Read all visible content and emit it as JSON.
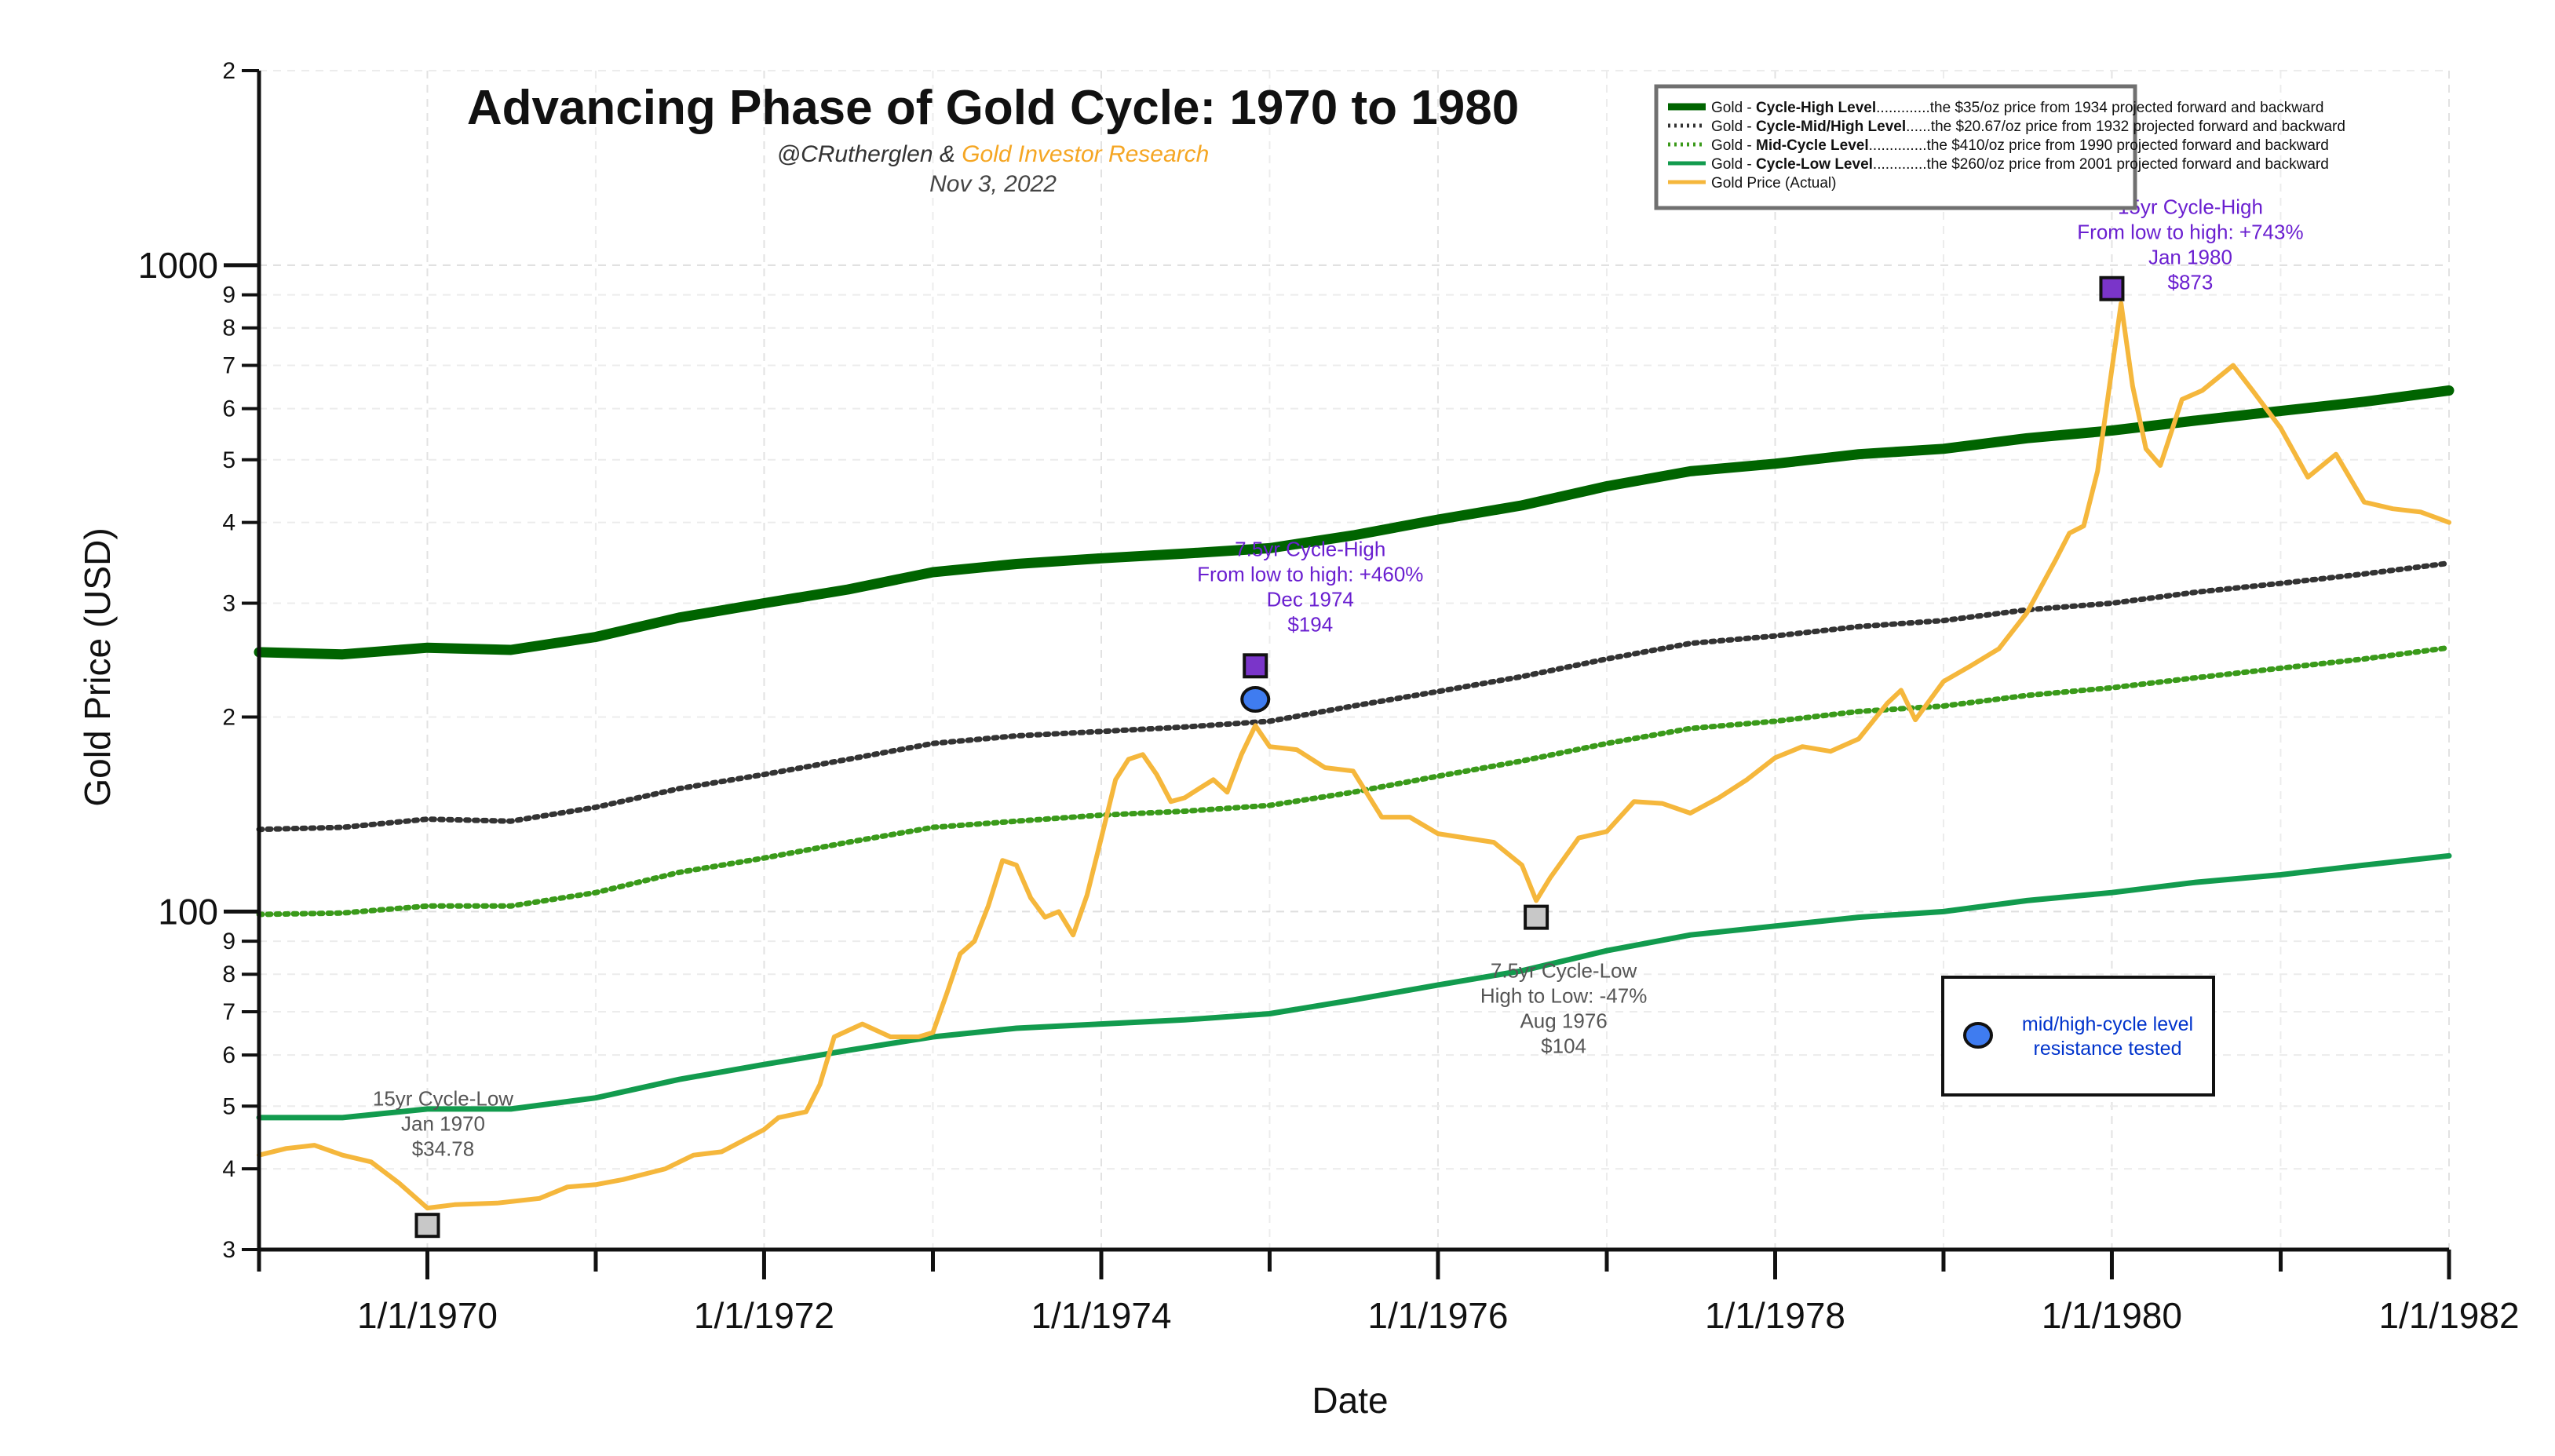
{
  "chart_data": {
    "type": "line",
    "title": "Advancing Phase of Gold Cycle: 1970 to 1980",
    "subtitle_author": "@CRutherglen & ",
    "subtitle_org": "Gold Investor Research",
    "date_text": "Nov 3, 2022",
    "xlabel": "Date",
    "ylabel": "Gold Price (USD)",
    "x_range": [
      "1969-01-01",
      "1982-01-01"
    ],
    "y_range": [
      30,
      2000
    ],
    "y_scale": "log",
    "grid": true,
    "x_ticks": [
      "1/1/1970",
      "1/1/1972",
      "1/1/1974",
      "1/1/1976",
      "1/1/1978",
      "1/1/1980",
      "1/1/1982"
    ],
    "y_major_ticks": [
      {
        "value": 100,
        "label": "100"
      },
      {
        "value": 1000,
        "label": "1000"
      }
    ],
    "y_minor_ticks": [
      {
        "value": 30,
        "label": "3"
      },
      {
        "value": 40,
        "label": "4"
      },
      {
        "value": 50,
        "label": "5"
      },
      {
        "value": 60,
        "label": "6"
      },
      {
        "value": 70,
        "label": "7"
      },
      {
        "value": 80,
        "label": "8"
      },
      {
        "value": 90,
        "label": "9"
      },
      {
        "value": 200,
        "label": "2"
      },
      {
        "value": 300,
        "label": "3"
      },
      {
        "value": 400,
        "label": "4"
      },
      {
        "value": 500,
        "label": "5"
      },
      {
        "value": 600,
        "label": "6"
      },
      {
        "value": 700,
        "label": "7"
      },
      {
        "value": 800,
        "label": "8"
      },
      {
        "value": 900,
        "label": "9"
      },
      {
        "value": 2000,
        "label": "2"
      }
    ],
    "legend": {
      "placement": "top-right",
      "items": [
        {
          "key": "high",
          "prefix": "Gold - ",
          "bold": "Cycle-High Level",
          "desc": ".............the $35/oz price from 1934 projected forward and backward",
          "color": "#006400",
          "dash": "solid"
        },
        {
          "key": "midhigh",
          "prefix": "Gold - ",
          "bold": "Cycle-Mid/High Level",
          "desc": "......the $20.67/oz price from 1932 projected forward and backward",
          "color": "#333333",
          "dash": "dotted"
        },
        {
          "key": "mid",
          "prefix": "Gold - ",
          "bold": "Mid-Cycle Level",
          "desc": "..............the $410/oz price from 1990 projected forward and backward",
          "color": "#3a9a1a",
          "dash": "dotted"
        },
        {
          "key": "low",
          "prefix": "Gold - ",
          "bold": "Cycle-Low Level",
          "desc": ".............the $260/oz price from 2001 projected forward and backward",
          "color": "#129b4e",
          "dash": "solid"
        },
        {
          "key": "actual",
          "prefix": "",
          "bold": "",
          "desc": "Gold Price (Actual)",
          "color": "#f5b73c",
          "dash": "solid"
        }
      ]
    },
    "series": [
      {
        "key": "high",
        "name": "Gold - Cycle-High Level",
        "color": "#006400",
        "points": [
          [
            "1969-01-01",
            252
          ],
          [
            "1969-07-01",
            250
          ],
          [
            "1970-01-01",
            256
          ],
          [
            "1970-07-01",
            254
          ],
          [
            "1971-01-01",
            266
          ],
          [
            "1971-07-01",
            285
          ],
          [
            "1972-01-01",
            300
          ],
          [
            "1972-07-01",
            315
          ],
          [
            "1973-01-01",
            335
          ],
          [
            "1973-07-01",
            345
          ],
          [
            "1974-01-01",
            352
          ],
          [
            "1974-07-01",
            358
          ],
          [
            "1975-01-01",
            365
          ],
          [
            "1975-07-01",
            382
          ],
          [
            "1976-01-01",
            404
          ],
          [
            "1976-07-01",
            425
          ],
          [
            "1977-01-01",
            455
          ],
          [
            "1977-07-01",
            480
          ],
          [
            "1978-01-01",
            493
          ],
          [
            "1978-07-01",
            510
          ],
          [
            "1979-01-01",
            520
          ],
          [
            "1979-07-01",
            540
          ],
          [
            "1980-01-01",
            555
          ],
          [
            "1980-07-01",
            575
          ],
          [
            "1981-01-01",
            595
          ],
          [
            "1981-07-01",
            615
          ],
          [
            "1982-01-01",
            640
          ]
        ]
      },
      {
        "key": "midhigh",
        "name": "Gold - Cycle-Mid/High Level",
        "color": "#333333",
        "points": [
          [
            "1969-01-01",
            134
          ],
          [
            "1969-07-01",
            135
          ],
          [
            "1970-01-01",
            139
          ],
          [
            "1970-07-01",
            138
          ],
          [
            "1971-01-01",
            145
          ],
          [
            "1971-07-01",
            155
          ],
          [
            "1972-01-01",
            163
          ],
          [
            "1972-07-01",
            172
          ],
          [
            "1973-01-01",
            182
          ],
          [
            "1973-07-01",
            187
          ],
          [
            "1974-01-01",
            190
          ],
          [
            "1974-07-01",
            193
          ],
          [
            "1975-01-01",
            197
          ],
          [
            "1975-07-01",
            208
          ],
          [
            "1976-01-01",
            219
          ],
          [
            "1976-07-01",
            231
          ],
          [
            "1977-01-01",
            246
          ],
          [
            "1977-07-01",
            260
          ],
          [
            "1978-01-01",
            267
          ],
          [
            "1978-07-01",
            276
          ],
          [
            "1979-01-01",
            282
          ],
          [
            "1979-07-01",
            293
          ],
          [
            "1980-01-01",
            300
          ],
          [
            "1980-07-01",
            312
          ],
          [
            "1981-01-01",
            322
          ],
          [
            "1981-07-01",
            333
          ],
          [
            "1982-01-01",
            346
          ]
        ]
      },
      {
        "key": "mid",
        "name": "Gold - Mid-Cycle Level",
        "color": "#3a9a1a",
        "points": [
          [
            "1969-01-01",
            99
          ],
          [
            "1969-07-01",
            99.5
          ],
          [
            "1970-01-01",
            102
          ],
          [
            "1970-07-01",
            102
          ],
          [
            "1971-01-01",
            107
          ],
          [
            "1971-07-01",
            115
          ],
          [
            "1972-01-01",
            121
          ],
          [
            "1972-07-01",
            128
          ],
          [
            "1973-01-01",
            135
          ],
          [
            "1973-07-01",
            138
          ],
          [
            "1974-01-01",
            141
          ],
          [
            "1974-07-01",
            143
          ],
          [
            "1975-01-01",
            146
          ],
          [
            "1975-07-01",
            153
          ],
          [
            "1976-01-01",
            162
          ],
          [
            "1976-07-01",
            171
          ],
          [
            "1977-01-01",
            182
          ],
          [
            "1977-07-01",
            192
          ],
          [
            "1978-01-01",
            197
          ],
          [
            "1978-07-01",
            204
          ],
          [
            "1979-01-01",
            208
          ],
          [
            "1979-07-01",
            216
          ],
          [
            "1980-01-01",
            222
          ],
          [
            "1980-07-01",
            230
          ],
          [
            "1981-01-01",
            238
          ],
          [
            "1981-07-01",
            246
          ],
          [
            "1982-01-01",
            256
          ]
        ]
      },
      {
        "key": "low",
        "name": "Gold - Cycle-Low Level",
        "color": "#129b4e",
        "points": [
          [
            "1969-01-01",
            48
          ],
          [
            "1969-07-01",
            48
          ],
          [
            "1970-01-01",
            49.5
          ],
          [
            "1970-07-01",
            49.5
          ],
          [
            "1971-01-01",
            51.5
          ],
          [
            "1971-07-01",
            55
          ],
          [
            "1972-01-01",
            58
          ],
          [
            "1972-07-01",
            61
          ],
          [
            "1973-01-01",
            64
          ],
          [
            "1973-07-01",
            66
          ],
          [
            "1974-01-01",
            67
          ],
          [
            "1974-07-01",
            68
          ],
          [
            "1975-01-01",
            69.5
          ],
          [
            "1975-07-01",
            73
          ],
          [
            "1976-01-01",
            77
          ],
          [
            "1976-07-01",
            81
          ],
          [
            "1977-01-01",
            87
          ],
          [
            "1977-07-01",
            92
          ],
          [
            "1978-01-01",
            95
          ],
          [
            "1978-07-01",
            98
          ],
          [
            "1979-01-01",
            100
          ],
          [
            "1979-07-01",
            104
          ],
          [
            "1980-01-01",
            107
          ],
          [
            "1980-07-01",
            111
          ],
          [
            "1981-01-01",
            114
          ],
          [
            "1981-07-01",
            118
          ],
          [
            "1982-01-01",
            122
          ]
        ]
      },
      {
        "key": "actual",
        "name": "Gold Price (Actual)",
        "color": "#f5b73c",
        "points": [
          [
            "1969-01-01",
            42
          ],
          [
            "1969-03-01",
            43
          ],
          [
            "1969-05-01",
            43.5
          ],
          [
            "1969-07-01",
            42
          ],
          [
            "1969-09-01",
            41
          ],
          [
            "1969-11-01",
            38
          ],
          [
            "1970-01-01",
            34.78
          ],
          [
            "1970-03-01",
            35.2
          ],
          [
            "1970-06-01",
            35.4
          ],
          [
            "1970-09-01",
            36
          ],
          [
            "1970-11-01",
            37.5
          ],
          [
            "1971-01-01",
            37.8
          ],
          [
            "1971-03-01",
            38.5
          ],
          [
            "1971-06-01",
            40
          ],
          [
            "1971-08-01",
            42
          ],
          [
            "1971-10-01",
            42.5
          ],
          [
            "1972-01-01",
            46
          ],
          [
            "1972-02-01",
            48
          ],
          [
            "1972-04-01",
            49
          ],
          [
            "1972-05-01",
            54
          ],
          [
            "1972-06-01",
            64
          ],
          [
            "1972-08-01",
            67
          ],
          [
            "1972-10-01",
            64
          ],
          [
            "1972-12-01",
            64
          ],
          [
            "1973-01-01",
            65
          ],
          [
            "1973-02-01",
            75
          ],
          [
            "1973-03-01",
            86
          ],
          [
            "1973-04-01",
            90
          ],
          [
            "1973-05-01",
            102
          ],
          [
            "1973-06-01",
            120
          ],
          [
            "1973-07-01",
            118
          ],
          [
            "1973-08-01",
            105
          ],
          [
            "1973-09-01",
            98
          ],
          [
            "1973-10-01",
            100
          ],
          [
            "1973-11-01",
            92
          ],
          [
            "1973-12-01",
            106
          ],
          [
            "1974-01-01",
            130
          ],
          [
            "1974-02-01",
            160
          ],
          [
            "1974-03-01",
            172
          ],
          [
            "1974-04-01",
            175
          ],
          [
            "1974-05-01",
            163
          ],
          [
            "1974-06-01",
            148
          ],
          [
            "1974-07-01",
            150
          ],
          [
            "1974-08-01",
            155
          ],
          [
            "1974-09-01",
            160
          ],
          [
            "1974-10-01",
            153
          ],
          [
            "1974-11-01",
            175
          ],
          [
            "1974-12-01",
            194
          ],
          [
            "1975-01-01",
            180
          ],
          [
            "1975-03-01",
            178
          ],
          [
            "1975-05-01",
            167
          ],
          [
            "1975-07-01",
            165
          ],
          [
            "1975-09-01",
            140
          ],
          [
            "1975-11-01",
            140
          ],
          [
            "1976-01-01",
            132
          ],
          [
            "1976-03-01",
            130
          ],
          [
            "1976-05-01",
            128
          ],
          [
            "1976-07-01",
            118
          ],
          [
            "1976-08-01",
            104
          ],
          [
            "1976-09-01",
            113
          ],
          [
            "1976-11-01",
            130
          ],
          [
            "1977-01-01",
            133
          ],
          [
            "1977-03-01",
            148
          ],
          [
            "1977-05-01",
            147
          ],
          [
            "1977-07-01",
            142
          ],
          [
            "1977-09-01",
            150
          ],
          [
            "1977-11-01",
            160
          ],
          [
            "1978-01-01",
            173
          ],
          [
            "1978-03-01",
            180
          ],
          [
            "1978-05-01",
            177
          ],
          [
            "1978-07-01",
            185
          ],
          [
            "1978-09-01",
            210
          ],
          [
            "1978-10-01",
            220
          ],
          [
            "1978-11-01",
            198
          ],
          [
            "1979-01-01",
            227
          ],
          [
            "1979-03-01",
            240
          ],
          [
            "1979-05-01",
            255
          ],
          [
            "1979-07-01",
            290
          ],
          [
            "1979-09-01",
            350
          ],
          [
            "1979-10-01",
            385
          ],
          [
            "1979-11-01",
            395
          ],
          [
            "1979-12-01",
            480
          ],
          [
            "1980-01-21",
            873
          ],
          [
            "1980-02-15",
            650
          ],
          [
            "1980-03-15",
            520
          ],
          [
            "1980-04-15",
            490
          ],
          [
            "1980-06-01",
            620
          ],
          [
            "1980-07-15",
            640
          ],
          [
            "1980-09-20",
            700
          ],
          [
            "1980-11-01",
            640
          ],
          [
            "1981-01-01",
            560
          ],
          [
            "1981-03-01",
            470
          ],
          [
            "1981-05-01",
            510
          ],
          [
            "1981-07-01",
            430
          ],
          [
            "1981-09-01",
            420
          ],
          [
            "1981-11-01",
            415
          ],
          [
            "1982-01-01",
            400
          ]
        ]
      }
    ],
    "markers": [
      {
        "key": "low70",
        "type": "square",
        "date": "1970-01-01",
        "value": 34.78,
        "fill": "#c8c8c8",
        "anchor_value": 32.7,
        "lines": [
          "15yr Cycle-Low",
          "Jan 1970",
          "$34.78"
        ],
        "label_color": "#555555"
      },
      {
        "key": "high74",
        "type": "square",
        "date": "1974-12-01",
        "value": 194,
        "fill": "#7a35c9",
        "anchor_value": 240,
        "lines": [
          "7.5yr Cycle-High",
          "From low to high: +460%",
          "Dec 1974",
          "$194"
        ],
        "label_color": "#6a1fd0"
      },
      {
        "key": "res74",
        "type": "circle",
        "date": "1974-12-01",
        "value": 213,
        "fill": "#3f7cf0",
        "anchor_value": 213,
        "lines": [],
        "label_color": "#0033cc"
      },
      {
        "key": "low76",
        "type": "square",
        "date": "1976-08-01",
        "value": 104,
        "fill": "#c8c8c8",
        "anchor_value": 98,
        "lines": [
          "7.5yr Cycle-Low",
          "High to Low: -47%",
          "Aug 1976",
          "$104"
        ],
        "label_color": "#555555"
      },
      {
        "key": "high80",
        "type": "square",
        "date": "1980-01-01",
        "value": 873,
        "fill": "#7a35c9",
        "anchor_value": 920,
        "lines": [
          "15yr Cycle-High",
          "From low to high: +743%",
          "Jan 1980",
          "$873"
        ],
        "label_color": "#6a1fd0"
      }
    ],
    "annotation_box": {
      "lines": [
        "mid/high-cycle level",
        "resistance tested"
      ],
      "icon_color": "#3f7cf0",
      "text_color": "#0033cc"
    }
  }
}
